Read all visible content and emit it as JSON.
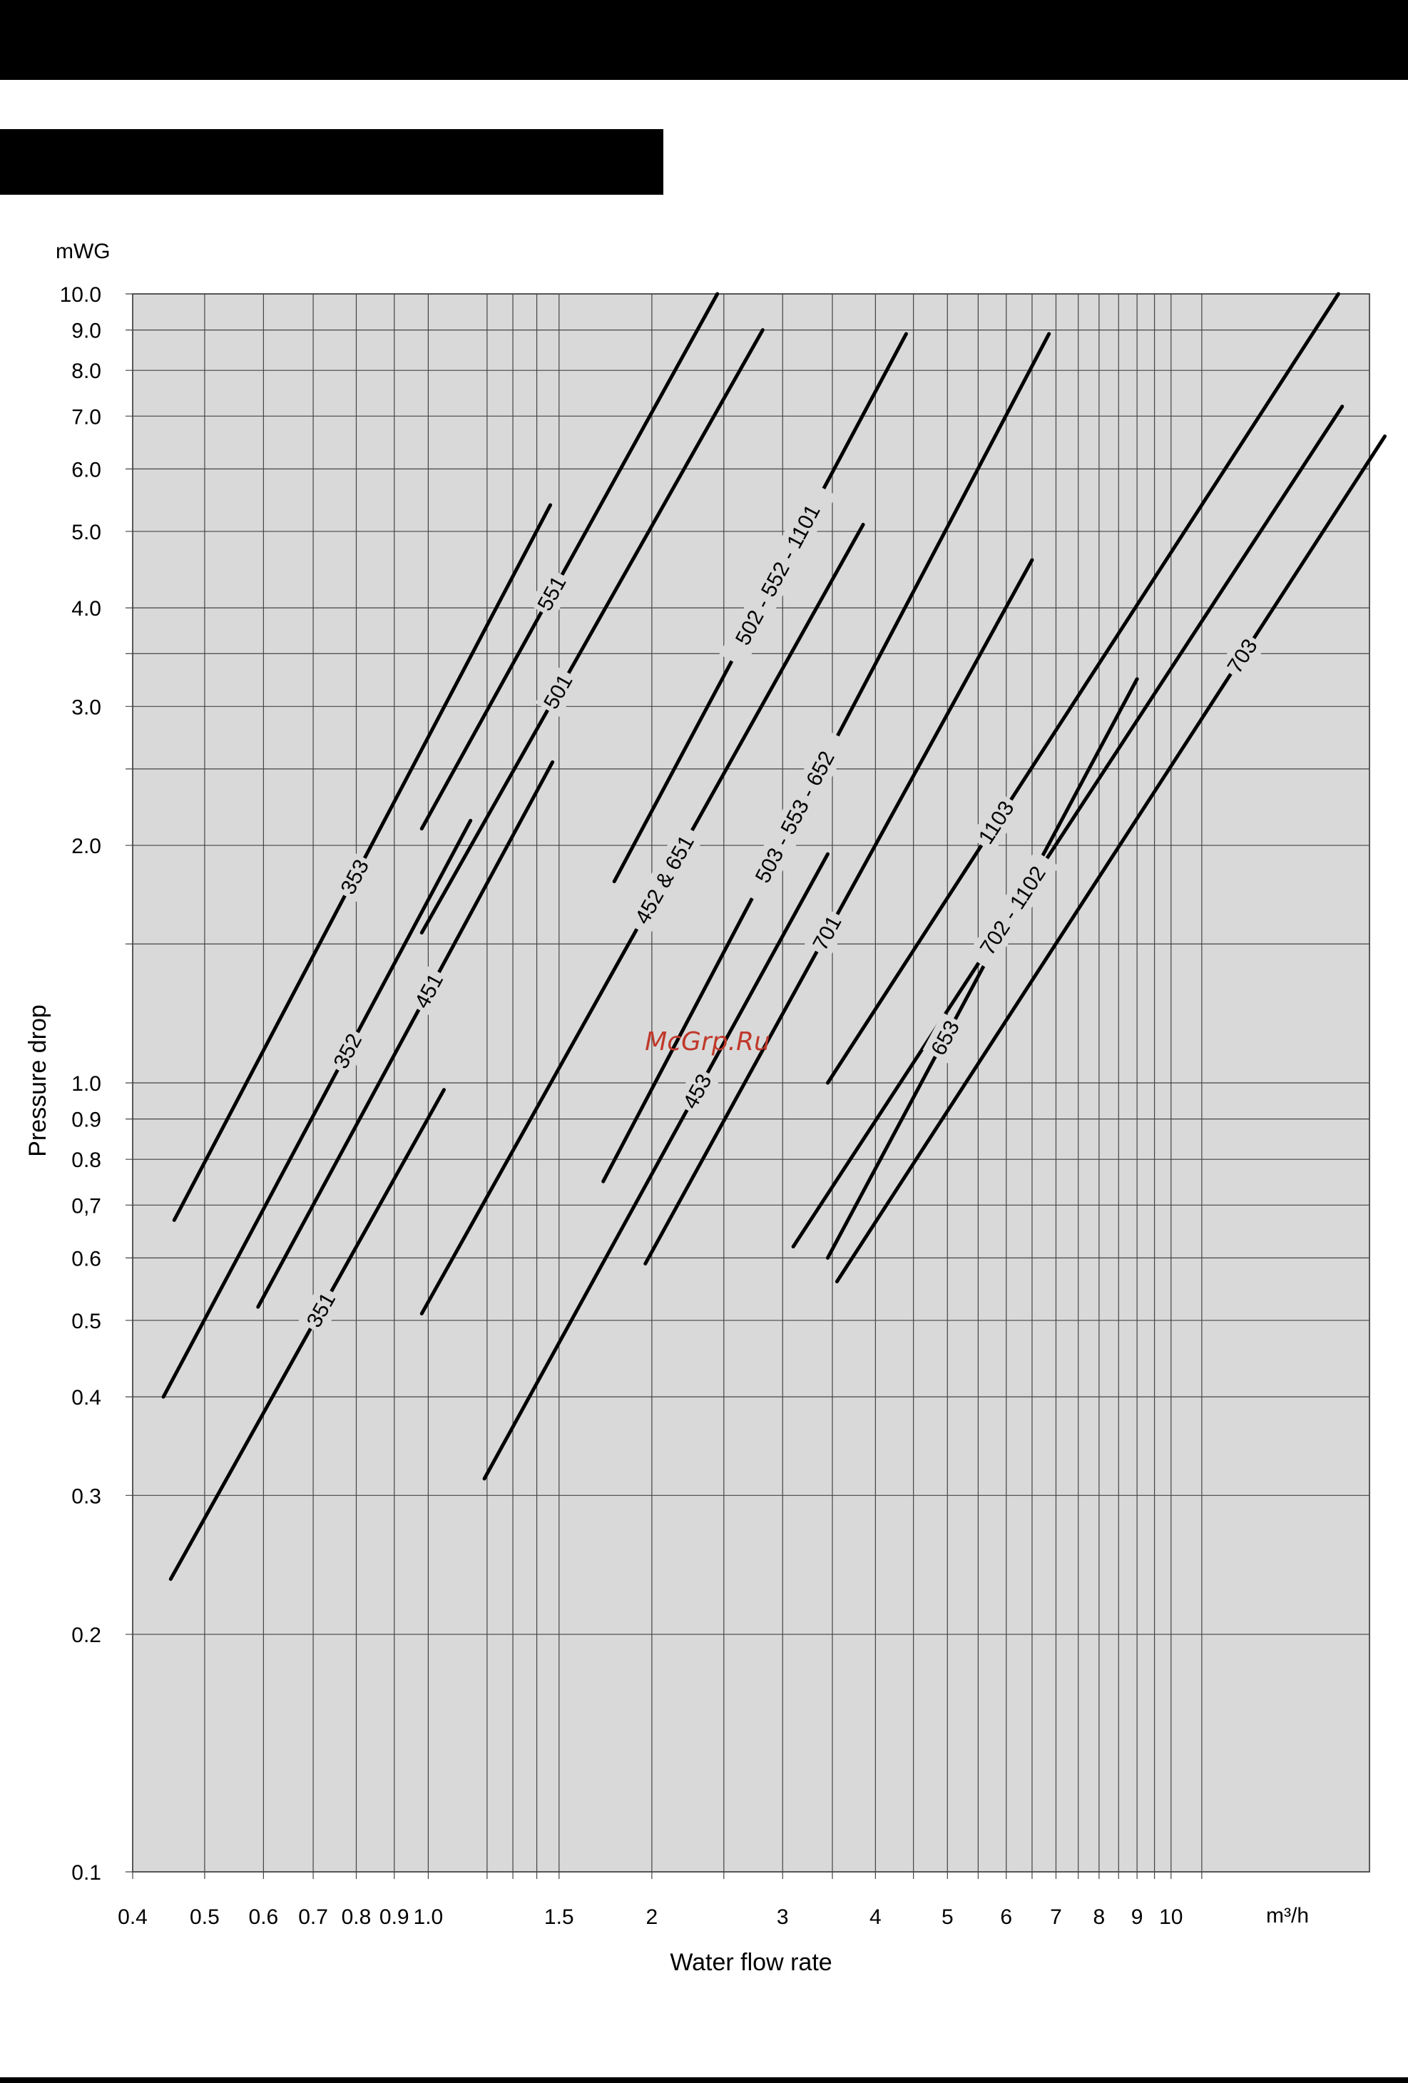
{
  "header": {
    "top_bar_color": "#000000",
    "sub_bar_color": "#000000"
  },
  "chart_data": {
    "type": "line",
    "title": "",
    "xlabel": "Water flow rate",
    "ylabel": "Pressure drop",
    "x_unit": "m³/h",
    "y_unit": "mWG",
    "x_scale": "log",
    "y_scale": "log",
    "xlim": [
      0.4,
      18.5
    ],
    "ylim": [
      0.1,
      10.0
    ],
    "grid": true,
    "plot_background": "#d9d9d9",
    "line_color": "#000000",
    "x_ticks": [
      0.4,
      0.5,
      0.6,
      0.7,
      0.8,
      0.9,
      1.0,
      1.5,
      2,
      3,
      4,
      5,
      6,
      7,
      8,
      9,
      10
    ],
    "x_tick_labels": [
      "0.4",
      "0.5",
      "0.6",
      "0.7",
      "0.8",
      "0.9",
      "1.0",
      "1.5",
      "2",
      "3",
      "4",
      "5",
      "6",
      "7",
      "8",
      "9",
      "10"
    ],
    "x_extra_gridlines": [
      1.2,
      1.3,
      1.4,
      2.5,
      3.5,
      4.5,
      5.5,
      6.5,
      7.5,
      8.5,
      9.5,
      11
    ],
    "y_ticks": [
      0.1,
      0.2,
      0.3,
      0.4,
      0.5,
      0.6,
      0.7,
      0.8,
      0.9,
      1.0,
      2.0,
      3.0,
      4.0,
      5.0,
      6.0,
      7.0,
      8.0,
      9.0,
      10.0
    ],
    "y_tick_labels": [
      "0.1",
      "0.2",
      "0.3",
      "0.4",
      "0.5",
      "0.6",
      "0,7",
      "0.8",
      "0.9",
      "1.0",
      "2.0",
      "3.0",
      "4.0",
      "5.0",
      "6.0",
      "7.0",
      "8.0",
      "9.0",
      "10.0"
    ],
    "y_extra_gridlines": [
      1.5,
      2.5,
      3.5
    ],
    "series": [
      {
        "name": "353",
        "x": [
          0.455,
          1.46
        ],
        "y": [
          0.67,
          5.4
        ],
        "label_at": 0.48
      },
      {
        "name": "352",
        "x": [
          0.44,
          1.14
        ],
        "y": [
          0.4,
          2.15
        ],
        "label_at": 0.6
      },
      {
        "name": "351",
        "x": [
          0.45,
          1.05
        ],
        "y": [
          0.235,
          0.98
        ],
        "label_at": 0.55
      },
      {
        "name": "451",
        "x": [
          0.59,
          1.47
        ],
        "y": [
          0.52,
          2.55
        ],
        "label_at": 0.58
      },
      {
        "name": "551",
        "x": [
          0.98,
          2.45
        ],
        "y": [
          2.1,
          10.0
        ],
        "label_at": 0.44
      },
      {
        "name": "501",
        "x": [
          0.98,
          2.82
        ],
        "y": [
          1.55,
          9.0
        ],
        "label_at": 0.4
      },
      {
        "name": "502 - 552 - 1101",
        "x": [
          1.78,
          4.4
        ],
        "y": [
          1.8,
          8.9
        ],
        "label_at": 0.56
      },
      {
        "name": "452 & 651",
        "x": [
          0.98,
          3.85
        ],
        "y": [
          0.51,
          5.1
        ],
        "label_at": 0.55
      },
      {
        "name": "503 - 553 - 652",
        "x": [
          1.72,
          6.85
        ],
        "y": [
          0.75,
          8.9
        ],
        "label_at": 0.43
      },
      {
        "name": "453",
        "x": [
          1.19,
          3.45
        ],
        "y": [
          0.315,
          1.95
        ],
        "label_at": 0.62
      },
      {
        "name": "701",
        "x": [
          1.96,
          6.5
        ],
        "y": [
          0.59,
          4.6
        ],
        "label_at": 0.47
      },
      {
        "name": "1103",
        "x": [
          3.45,
          16.8
        ],
        "y": [
          1.0,
          10.0
        ],
        "label_at": 0.33
      },
      {
        "name": "702 - 1102",
        "x": [
          3.1,
          17.0
        ],
        "y": [
          0.62,
          7.2
        ],
        "label_at": 0.4
      },
      {
        "name": "653",
        "x": [
          3.45,
          9.0
        ],
        "y": [
          0.6,
          3.25
        ],
        "label_at": 0.38
      },
      {
        "name": "703",
        "x": [
          3.55,
          19.4
        ],
        "y": [
          0.56,
          6.6
        ],
        "label_at": 0.74
      }
    ]
  },
  "watermark": {
    "text": "McGrp.Ru",
    "color": "#c0392b"
  }
}
